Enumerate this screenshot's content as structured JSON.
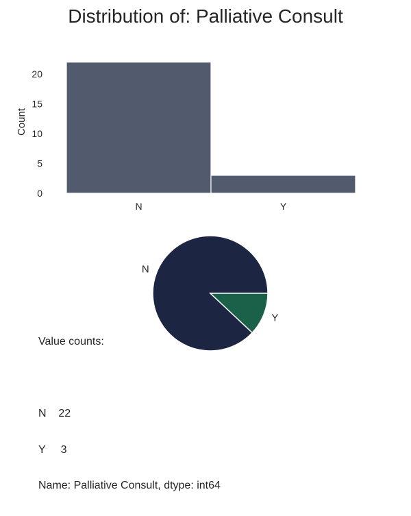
{
  "title": "Distribution of: Palliative Consult",
  "chart_data": [
    {
      "type": "bar",
      "categories": [
        "N",
        "Y"
      ],
      "values": [
        22,
        3
      ],
      "ylabel": "Count",
      "xlabel": "",
      "ylim": [
        0,
        23
      ],
      "yticks": [
        0,
        5,
        10,
        15,
        20
      ],
      "grid": false,
      "color": "#525a6e"
    },
    {
      "type": "pie",
      "labels": [
        "N",
        "Y"
      ],
      "values": [
        22,
        3
      ],
      "colors": [
        "#1c2541",
        "#1b614a"
      ]
    }
  ],
  "value_counts": {
    "heading": "Value counts:",
    "rows": [
      "N    22",
      "Y     3"
    ],
    "footer": "Name: Palliative Consult, dtype: int64"
  }
}
